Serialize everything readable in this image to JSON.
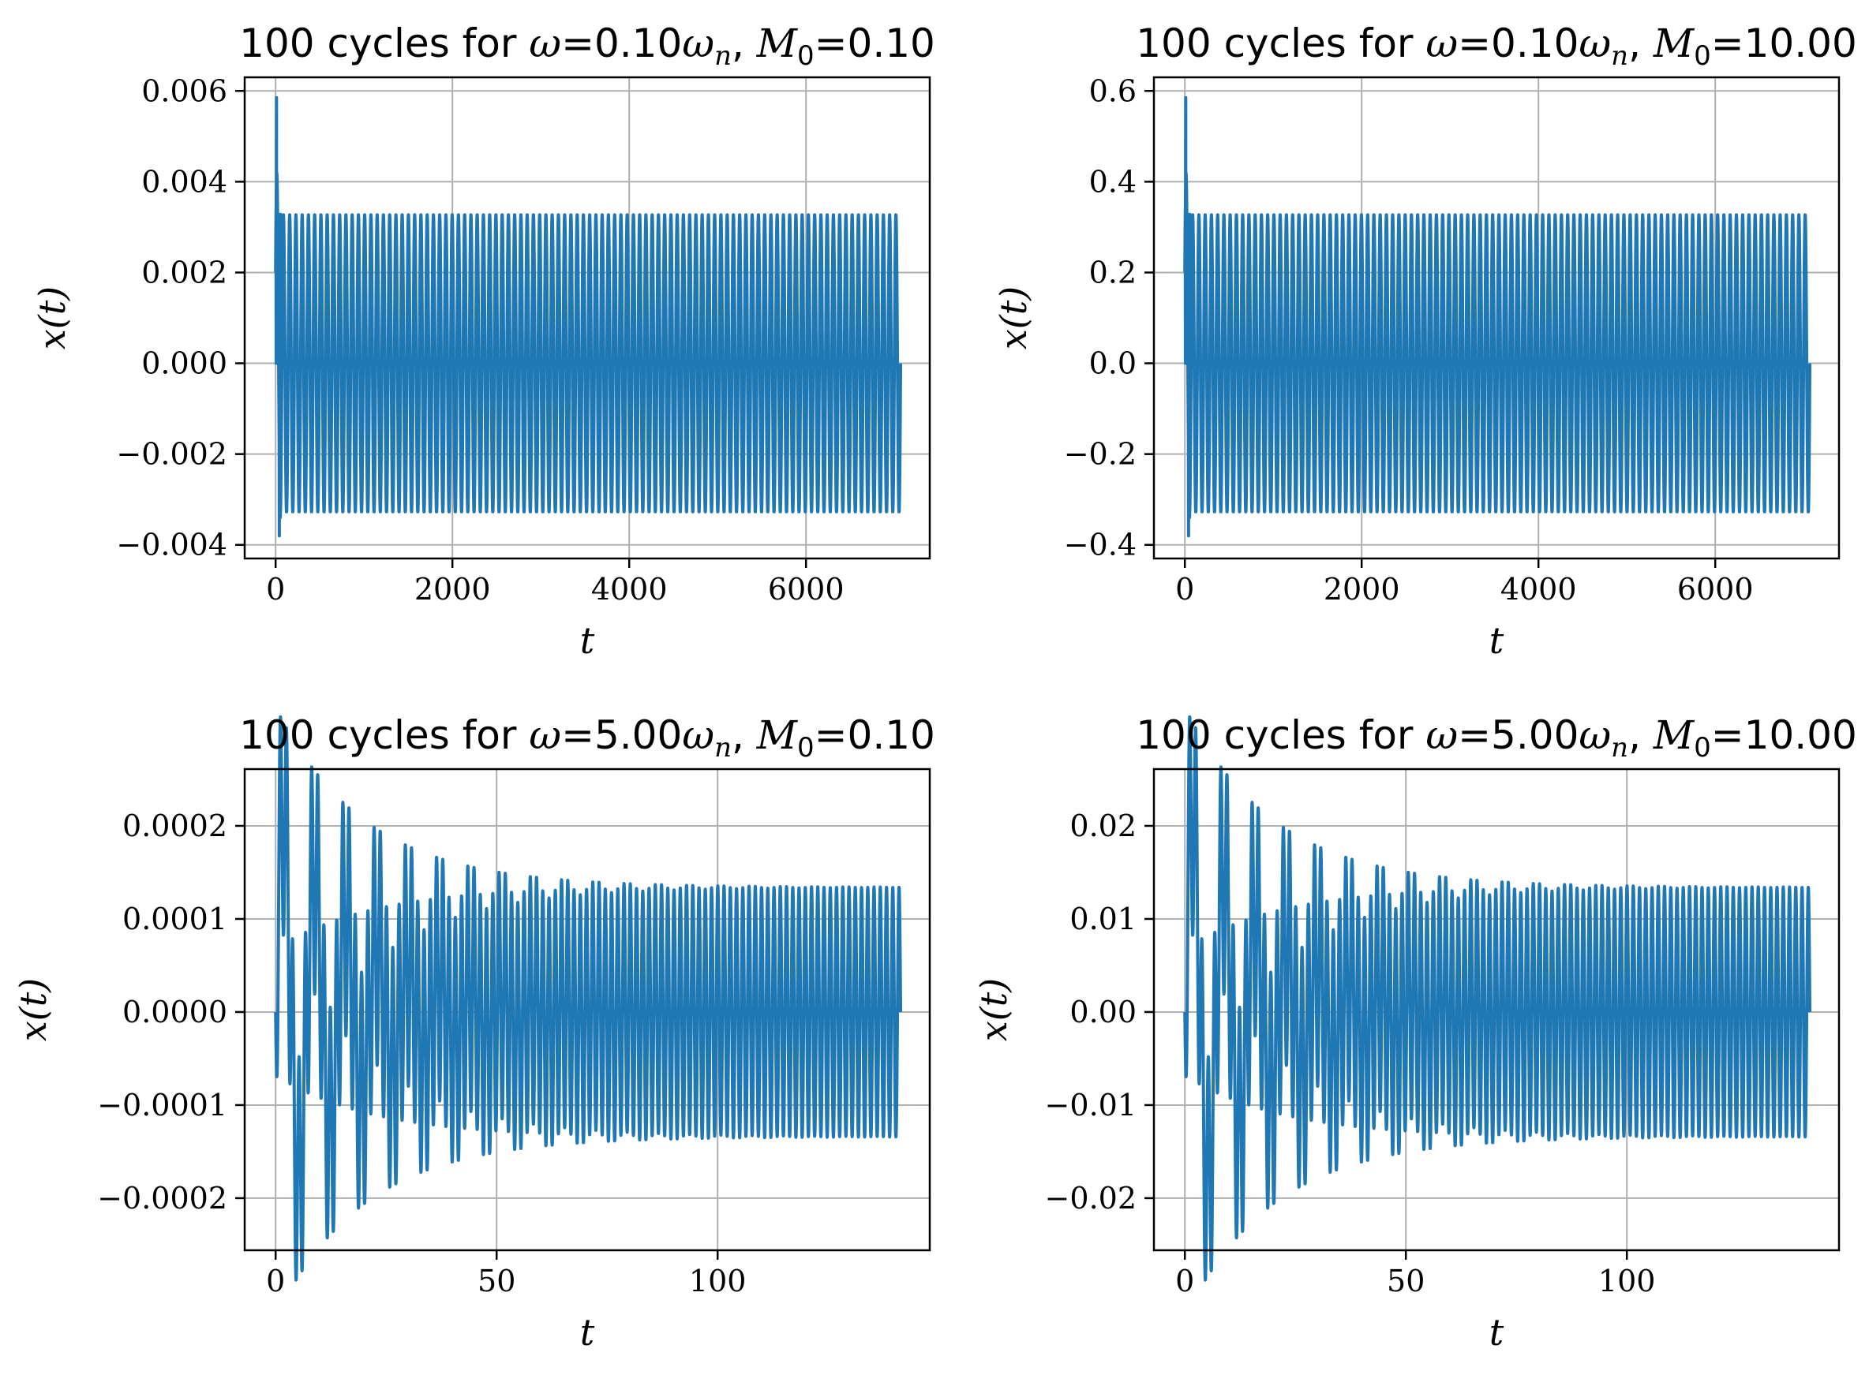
{
  "figure": {
    "background": "#ffffff",
    "line_color": "#1f77b4",
    "grid_color": "#b0b0b0"
  },
  "chart_data": [
    {
      "type": "line",
      "title_prefix": "100 cycles for ",
      "title_omega": "ω",
      "title_omega_value": "=0.10",
      "title_omega_sub": "ω",
      "title_omega_sub_n": "n",
      "title_sep": ", ",
      "title_M": "M",
      "title_M_sub": "0",
      "title_M_value": "=0.10",
      "xlabel": "t",
      "ylabel": "x(t)",
      "xlim": [
        -350,
        7400
      ],
      "ylim": [
        -0.0043,
        0.0063
      ],
      "xticks": [
        0,
        2000,
        4000,
        6000
      ],
      "xtick_labels": [
        "0",
        "2000",
        "4000",
        "6000"
      ],
      "yticks": [
        -0.004,
        -0.002,
        0.0,
        0.002,
        0.004,
        0.006
      ],
      "ytick_labels": [
        "−0.004",
        "−0.002",
        "0.000",
        "0.002",
        "0.004",
        "0.006"
      ],
      "signal": {
        "t_end": 7070,
        "cycles": 100,
        "steady_amplitude": 0.00328,
        "transient_max": 0.00585,
        "transient_min": -0.0038,
        "decay_time": 60,
        "natural_periods": 0
      }
    },
    {
      "type": "line",
      "title_prefix": "100 cycles for ",
      "title_omega": "ω",
      "title_omega_value": "=0.10",
      "title_omega_sub": "ω",
      "title_omega_sub_n": "n",
      "title_sep": ", ",
      "title_M": "M",
      "title_M_sub": "0",
      "title_M_value": "=10.00",
      "xlabel": "t",
      "ylabel": "x(t)",
      "xlim": [
        -350,
        7400
      ],
      "ylim": [
        -0.43,
        0.63
      ],
      "xticks": [
        0,
        2000,
        4000,
        6000
      ],
      "xtick_labels": [
        "0",
        "2000",
        "4000",
        "6000"
      ],
      "yticks": [
        -0.4,
        -0.2,
        0.0,
        0.2,
        0.4,
        0.6
      ],
      "ytick_labels": [
        "−0.4",
        "−0.2",
        "0.0",
        "0.2",
        "0.4",
        "0.6"
      ],
      "signal": {
        "t_end": 7070,
        "cycles": 100,
        "steady_amplitude": 0.328,
        "transient_max": 0.585,
        "transient_min": -0.38,
        "decay_time": 60,
        "natural_periods": 0
      }
    },
    {
      "type": "line",
      "title_prefix": "100 cycles for ",
      "title_omega": "ω",
      "title_omega_value": "=5.00",
      "title_omega_sub": "ω",
      "title_omega_sub_n": "n",
      "title_sep": ", ",
      "title_M": "M",
      "title_M_sub": "0",
      "title_M_value": "=0.10",
      "xlabel": "t",
      "ylabel": "x(t)",
      "xlim": [
        -7,
        148
      ],
      "ylim": [
        -0.000256,
        0.000261
      ],
      "xticks": [
        0,
        50,
        100
      ],
      "xtick_labels": [
        "0",
        "50",
        "100"
      ],
      "yticks": [
        -0.0002,
        -0.0001,
        0.0,
        0.0001,
        0.0002
      ],
      "ytick_labels": [
        "−0.0002",
        "−0.0001",
        "0.0000",
        "0.0001",
        "0.0002"
      ],
      "signal": {
        "t_end": 141.4,
        "cycles": 100,
        "steady_amplitude": 0.000134,
        "transient_amplitude": 0.000236,
        "natural_period": 7.07,
        "decay_time": 45,
        "phase_start": 0
      }
    },
    {
      "type": "line",
      "title_prefix": "100 cycles for ",
      "title_omega": "ω",
      "title_omega_value": "=5.00",
      "title_omega_sub": "ω",
      "title_omega_sub_n": "n",
      "title_sep": ", ",
      "title_M": "M",
      "title_M_sub": "0",
      "title_M_value": "=10.00",
      "xlabel": "t",
      "ylabel": "x(t)",
      "xlim": [
        -7,
        148
      ],
      "ylim": [
        -0.0256,
        0.0261
      ],
      "xticks": [
        0,
        50,
        100
      ],
      "xtick_labels": [
        "0",
        "50",
        "100"
      ],
      "yticks": [
        -0.02,
        -0.01,
        0.0,
        0.01,
        0.02
      ],
      "ytick_labels": [
        "−0.02",
        "−0.01",
        "0.00",
        "0.01",
        "0.02"
      ],
      "signal": {
        "t_end": 141.4,
        "cycles": 100,
        "steady_amplitude": 0.0134,
        "transient_amplitude": 0.0236,
        "natural_period": 7.07,
        "decay_time": 45,
        "phase_start": 0
      }
    }
  ]
}
